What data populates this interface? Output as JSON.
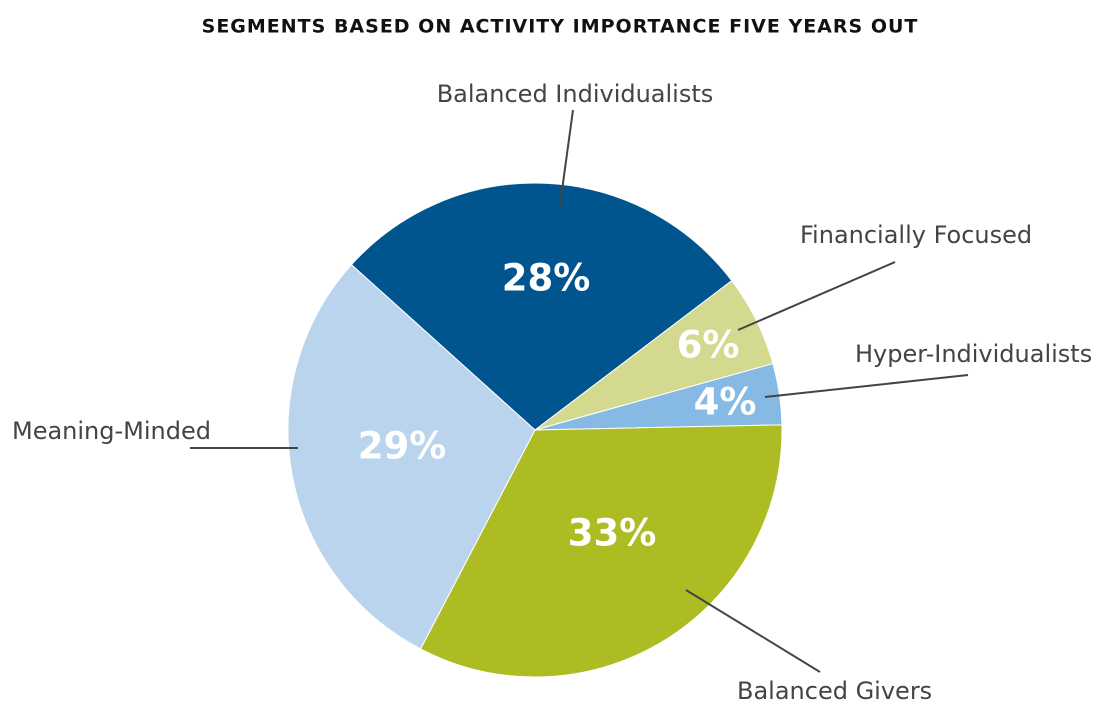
{
  "chart_data": {
    "type": "pie",
    "title": "SEGMENTS BASED ON ACTIVITY IMPORTANCE FIVE YEARS OUT",
    "categories": [
      "Balanced Individualists",
      "Financially Focused",
      "Hyper-Individualists",
      "Balanced Givers",
      "Meaning-Minded"
    ],
    "values": [
      28,
      6,
      4,
      33,
      29
    ],
    "value_labels": [
      "28%",
      "6%",
      "4%",
      "33%",
      "29%"
    ],
    "colors": [
      "#00558f",
      "#d3d98e",
      "#86b9e4",
      "#adbc22",
      "#bad4ee"
    ]
  }
}
